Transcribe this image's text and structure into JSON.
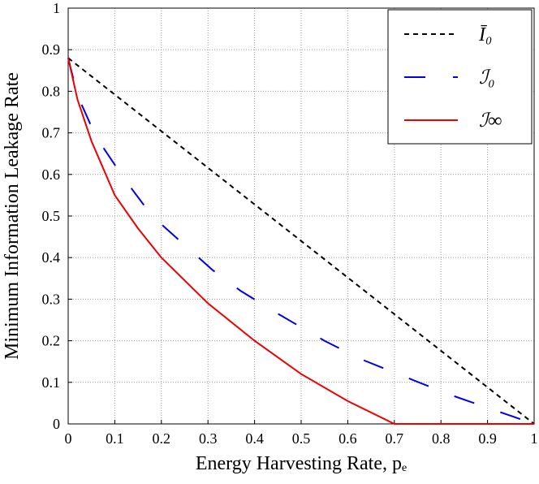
{
  "chart_data": {
    "type": "line",
    "xlabel": "Energy Harvesting Rate, pₑ",
    "ylabel": "Minimum Information Leakage Rate",
    "xlim": [
      0,
      1
    ],
    "ylim": [
      0,
      1
    ],
    "xticks": [
      0,
      0.1,
      0.2,
      0.3,
      0.4,
      0.5,
      0.6,
      0.7,
      0.8,
      0.9,
      1
    ],
    "yticks": [
      0,
      0.1,
      0.2,
      0.3,
      0.4,
      0.5,
      0.6,
      0.7,
      0.8,
      0.9,
      1
    ],
    "grid": true,
    "legend": "upper right",
    "series": [
      {
        "name": "Ī₀",
        "color": "#000000",
        "style": "dashed",
        "x": [
          0,
          1
        ],
        "values": [
          0.88,
          0
        ]
      },
      {
        "name": "ℐ₀",
        "color": "#0000ee",
        "style": "long-dashed",
        "x": [
          0,
          0.02,
          0.06,
          0.12,
          0.18,
          0.25,
          0.31,
          0.37,
          0.45,
          0.55,
          0.63,
          0.73,
          0.82,
          0.91,
          1
        ],
        "values": [
          0.88,
          0.79,
          0.69,
          0.59,
          0.5,
          0.43,
          0.37,
          0.32,
          0.265,
          0.2,
          0.155,
          0.11,
          0.07,
          0.035,
          0
        ]
      },
      {
        "name": "ℐ∞",
        "color": "#ee0000",
        "style": "solid",
        "x": [
          0,
          0.02,
          0.05,
          0.1,
          0.15,
          0.2,
          0.3,
          0.4,
          0.5,
          0.6,
          0.7,
          0.8,
          0.9,
          1
        ],
        "values": [
          0.88,
          0.78,
          0.68,
          0.55,
          0.47,
          0.4,
          0.29,
          0.2,
          0.12,
          0.055,
          0,
          0,
          0,
          0
        ]
      }
    ]
  }
}
